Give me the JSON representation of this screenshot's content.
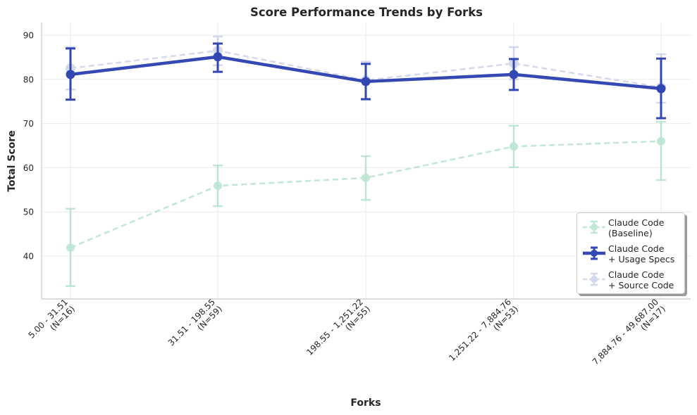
{
  "chart_data": {
    "type": "line",
    "title": "Score Performance Trends by Forks",
    "xlabel": "Forks",
    "ylabel": "Total Score",
    "ylim": [
      30.5,
      93
    ],
    "yticks": [
      40,
      50,
      60,
      70,
      80,
      90
    ],
    "grid": true,
    "legend_position": "lower right",
    "categories": [
      "5.00 - 31.51\n(N=16)",
      "31.51 - 198.55\n(N=59)",
      "198.55 - 1,251.22\n(N=55)",
      "1,251.22 - 7,884.76\n(N=53)",
      "7,884.76 - 49,687.00\n(N=17)"
    ],
    "series": [
      {
        "name": "Claude Code\n(Baseline)",
        "color": "#8fd4b5",
        "style": "dashed",
        "values": [
          41.9,
          55.9,
          57.7,
          64.8,
          66.0
        ],
        "error_low": [
          33.2,
          51.3,
          52.7,
          60.1,
          57.2
        ],
        "error_high": [
          50.7,
          60.5,
          62.6,
          69.5,
          70.4
        ]
      },
      {
        "name": "Claude Code\n+ Usage Specs",
        "color": "#2a3fb0",
        "style": "solid",
        "values": [
          81.1,
          85.1,
          79.5,
          81.1,
          77.9
        ],
        "error_low": [
          75.4,
          81.7,
          75.5,
          77.6,
          71.2
        ],
        "error_high": [
          87.0,
          88.1,
          83.5,
          84.6,
          84.7
        ]
      },
      {
        "name": "Claude Code\n+ Source Code",
        "color": "#aab4dc",
        "style": "dashed",
        "values": [
          82.5,
          86.5,
          79.8,
          83.6,
          78.2
        ],
        "error_low": [
          77.7,
          83.2,
          75.6,
          80.0,
          74.7
        ],
        "error_high": [
          87.3,
          89.7,
          84.0,
          87.3,
          85.7
        ]
      }
    ]
  }
}
